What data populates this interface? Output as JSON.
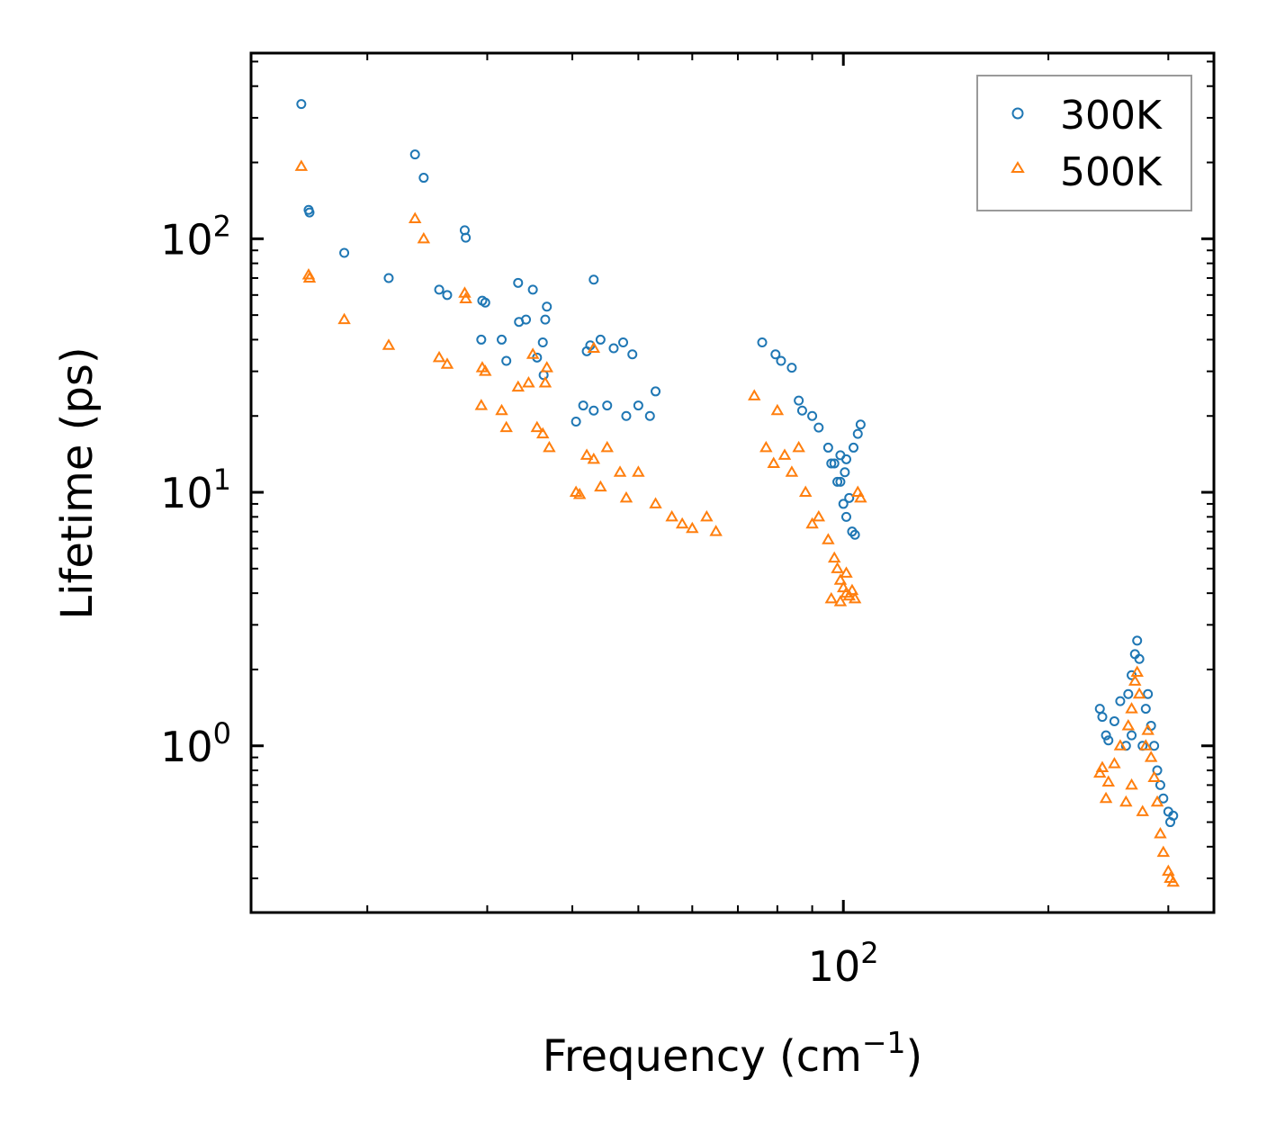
{
  "chart_data": {
    "type": "scatter",
    "title": "",
    "xlabel": "Frequency (cm",
    "xlabel_sup": "−1",
    "xlabel_end": ")",
    "ylabel": "Lifetime (ps)",
    "xscale": "log",
    "yscale": "log",
    "xlim": [
      13.5,
      350
    ],
    "ylim": [
      0.22,
      540
    ],
    "x_tick_labels": [
      {
        "value": 100,
        "base": "10",
        "exp": "2"
      }
    ],
    "y_tick_labels": [
      {
        "value": 1,
        "base": "10",
        "exp": "0"
      },
      {
        "value": 10,
        "base": "10",
        "exp": "1"
      },
      {
        "value": 100,
        "base": "10",
        "exp": "2"
      }
    ],
    "legend_position": "top-right",
    "series": [
      {
        "name": "300K",
        "color": "#1f77b4",
        "marker": "circle",
        "points": [
          [
            16.0,
            340
          ],
          [
            16.4,
            130
          ],
          [
            16.45,
            127
          ],
          [
            18.5,
            88
          ],
          [
            21.5,
            70
          ],
          [
            23.5,
            215
          ],
          [
            24.2,
            174
          ],
          [
            25.5,
            63
          ],
          [
            26.2,
            60
          ],
          [
            27.8,
            108
          ],
          [
            27.9,
            101
          ],
          [
            29.5,
            57
          ],
          [
            29.8,
            56
          ],
          [
            29.4,
            40
          ],
          [
            31.5,
            40
          ],
          [
            32,
            33
          ],
          [
            33.3,
            67
          ],
          [
            33.4,
            47
          ],
          [
            34.2,
            48
          ],
          [
            35,
            63
          ],
          [
            35.5,
            34
          ],
          [
            36.2,
            39
          ],
          [
            36.5,
            48
          ],
          [
            36.7,
            54
          ],
          [
            36.3,
            29
          ],
          [
            43,
            69
          ],
          [
            42,
            36
          ],
          [
            42.5,
            38
          ],
          [
            44,
            40
          ],
          [
            46,
            37
          ],
          [
            47.5,
            39
          ],
          [
            49,
            35
          ],
          [
            40.5,
            19
          ],
          [
            41.5,
            22
          ],
          [
            43,
            21
          ],
          [
            45,
            22
          ],
          [
            48,
            20
          ],
          [
            50,
            22
          ],
          [
            52,
            20
          ],
          [
            53,
            25
          ],
          [
            76,
            39
          ],
          [
            79.5,
            35
          ],
          [
            81,
            33
          ],
          [
            84,
            31
          ],
          [
            86,
            23
          ],
          [
            87,
            21
          ],
          [
            90,
            20
          ],
          [
            92,
            18
          ],
          [
            95,
            15
          ],
          [
            97,
            13
          ],
          [
            99,
            11
          ],
          [
            100,
            9
          ],
          [
            101,
            8
          ],
          [
            103,
            7
          ],
          [
            104,
            6.8
          ],
          [
            102,
            9.5
          ],
          [
            103.5,
            15
          ],
          [
            105,
            17
          ],
          [
            106,
            18.5
          ],
          [
            100.5,
            12
          ],
          [
            98,
            11
          ],
          [
            96,
            13
          ],
          [
            99,
            14
          ],
          [
            101,
            13.5
          ],
          [
            270,
            2.6
          ],
          [
            268,
            2.3
          ],
          [
            272,
            2.2
          ],
          [
            265,
            1.9
          ],
          [
            262,
            1.6
          ],
          [
            255,
            1.5
          ],
          [
            250,
            1.25
          ],
          [
            245,
            1.05
          ],
          [
            240,
            1.3
          ],
          [
            238,
            1.4
          ],
          [
            243,
            1.1
          ],
          [
            278,
            1.4
          ],
          [
            280,
            1.6
          ],
          [
            283,
            1.2
          ],
          [
            286,
            1.0
          ],
          [
            289,
            0.8
          ],
          [
            292,
            0.7
          ],
          [
            295,
            0.62
          ],
          [
            300,
            0.55
          ],
          [
            302,
            0.5
          ],
          [
            305,
            0.53
          ],
          [
            260,
            1.0
          ],
          [
            265,
            1.1
          ],
          [
            275,
            1.0
          ]
        ]
      },
      {
        "name": "500K",
        "color": "#ff7f0e",
        "marker": "triangle",
        "points": [
          [
            16.0,
            193
          ],
          [
            16.4,
            72
          ],
          [
            16.45,
            70
          ],
          [
            18.5,
            48
          ],
          [
            21.5,
            38
          ],
          [
            23.5,
            120
          ],
          [
            24.2,
            100
          ],
          [
            25.5,
            34
          ],
          [
            26.2,
            32
          ],
          [
            27.8,
            61
          ],
          [
            27.9,
            58
          ],
          [
            29.5,
            31
          ],
          [
            29.8,
            30
          ],
          [
            29.4,
            22
          ],
          [
            31.5,
            21
          ],
          [
            32,
            18
          ],
          [
            33.3,
            26
          ],
          [
            34.5,
            27
          ],
          [
            35,
            35
          ],
          [
            35.5,
            18
          ],
          [
            36.2,
            17
          ],
          [
            36.5,
            27
          ],
          [
            36.7,
            31
          ],
          [
            37,
            15
          ],
          [
            43,
            37
          ],
          [
            40.5,
            10
          ],
          [
            41,
            9.8
          ],
          [
            42,
            14
          ],
          [
            43,
            13.5
          ],
          [
            44,
            10.5
          ],
          [
            45,
            15
          ],
          [
            47,
            12
          ],
          [
            48,
            9.5
          ],
          [
            50,
            12
          ],
          [
            53,
            9
          ],
          [
            56,
            8
          ],
          [
            58,
            7.5
          ],
          [
            60,
            7.2
          ],
          [
            63,
            8
          ],
          [
            65,
            7
          ],
          [
            74,
            24
          ],
          [
            77,
            15
          ],
          [
            79,
            13
          ],
          [
            80,
            21
          ],
          [
            82,
            14
          ],
          [
            84,
            12
          ],
          [
            86,
            15
          ],
          [
            88,
            10
          ],
          [
            90,
            7.5
          ],
          [
            92,
            8
          ],
          [
            95,
            6.5
          ],
          [
            97,
            5.5
          ],
          [
            98,
            5
          ],
          [
            99,
            4.5
          ],
          [
            100,
            4.2
          ],
          [
            101,
            4.8
          ],
          [
            102,
            3.9
          ],
          [
            103,
            4.1
          ],
          [
            105,
            10
          ],
          [
            106,
            9.5
          ],
          [
            96,
            3.8
          ],
          [
            99,
            3.7
          ],
          [
            101,
            4.0
          ],
          [
            104,
            3.8
          ],
          [
            270,
            1.95
          ],
          [
            268,
            1.8
          ],
          [
            272,
            1.6
          ],
          [
            265,
            1.4
          ],
          [
            262,
            1.2
          ],
          [
            255,
            1.0
          ],
          [
            250,
            0.85
          ],
          [
            245,
            0.72
          ],
          [
            240,
            0.82
          ],
          [
            238,
            0.78
          ],
          [
            243,
            0.62
          ],
          [
            278,
            1.0
          ],
          [
            280,
            1.15
          ],
          [
            283,
            0.9
          ],
          [
            286,
            0.75
          ],
          [
            289,
            0.6
          ],
          [
            292,
            0.45
          ],
          [
            295,
            0.38
          ],
          [
            300,
            0.32
          ],
          [
            302,
            0.3
          ],
          [
            305,
            0.29
          ],
          [
            260,
            0.6
          ],
          [
            265,
            0.7
          ],
          [
            275,
            0.55
          ]
        ]
      }
    ]
  }
}
